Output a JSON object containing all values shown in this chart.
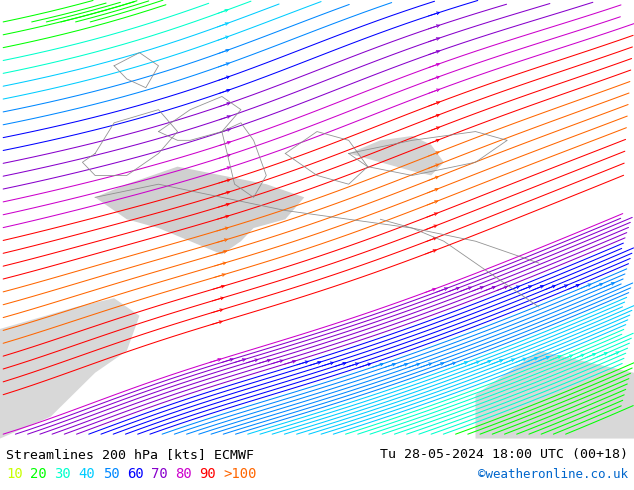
{
  "title_left": "Streamlines 200 hPa [kts] ECMWF",
  "title_right": "Tu 28-05-2024 18:00 UTC (00+18)",
  "credit": "©weatheronline.co.uk",
  "legend_values": [
    "10",
    "20",
    "30",
    "40",
    "50",
    "60",
    "70",
    "80",
    "90",
    ">100"
  ],
  "legend_colors": [
    "#c8ff00",
    "#00ff00",
    "#00ffcc",
    "#00ccff",
    "#0088ff",
    "#0000ff",
    "#8800cc",
    "#cc00cc",
    "#ff0000",
    "#ff6600"
  ],
  "background_map_color": "#aae070",
  "sea_color": "#c8c8c8",
  "background_color": "#ffffff",
  "fig_width": 6.34,
  "fig_height": 4.9,
  "dpi": 100,
  "bottom_bar_color": "#ffffff",
  "text_color": "#000000",
  "title_fontsize": 9.5,
  "legend_fontsize": 10,
  "credit_color": "#0066cc",
  "credit_fontsize": 9,
  "border_color": "#888888"
}
